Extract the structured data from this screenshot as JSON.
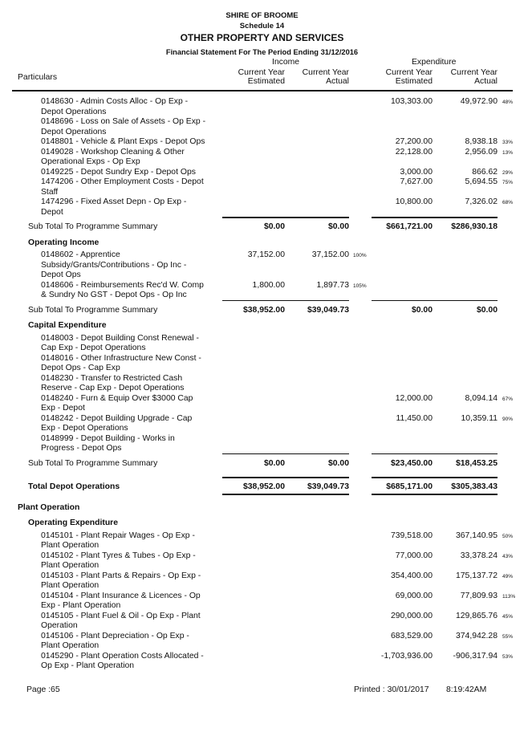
{
  "header": {
    "org": "SHIRE OF BROOME",
    "schedule": "Schedule 14",
    "title": "OTHER PROPERTY AND SERVICES",
    "period": "Financial Statement For The Period Ending 31/12/2016"
  },
  "columns": {
    "particulars": "Particulars",
    "income": "Income",
    "expenditure": "Expenditure",
    "cy": "Current Year",
    "estimated": "Estimated",
    "actual": "Actual"
  },
  "rows": [
    {
      "type": "item",
      "lines": [
        "0148630 - Admin Costs Alloc - Op Exp -",
        "Depot Operations"
      ],
      "exp_est": "103,303.00",
      "exp_act": "49,972.90",
      "pct": "48%"
    },
    {
      "type": "item",
      "lines": [
        "0148696 - Loss on Sale of Assets - Op Exp -",
        "Depot Operations"
      ]
    },
    {
      "type": "item",
      "lines": [
        "0148801 - Vehicle & Plant Exps - Depot Ops"
      ],
      "exp_est": "27,200.00",
      "exp_act": "8,938.18",
      "pct": "33%"
    },
    {
      "type": "item",
      "lines": [
        "0149028 - Workshop Cleaning & Other",
        "Operational Exps - Op Exp"
      ],
      "exp_est": "22,128.00",
      "exp_act": "2,956.09",
      "pct": "13%"
    },
    {
      "type": "item",
      "lines": [
        "0149225 - Depot Sundry Exp - Depot Ops"
      ],
      "exp_est": "3,000.00",
      "exp_act": "866.62",
      "pct": "29%"
    },
    {
      "type": "item",
      "lines": [
        "1474206 - Other Employment Costs - Depot",
        "Staff"
      ],
      "exp_est": "7,627.00",
      "exp_act": "5,694.55",
      "pct": "75%"
    },
    {
      "type": "item",
      "lines": [
        "1474296 - Fixed Asset Depn - Op Exp -",
        "Depot"
      ],
      "exp_est": "10,800.00",
      "exp_act": "7,326.02",
      "pct": "68%"
    },
    {
      "type": "subtotal",
      "label": "Sub Total To Programme Summary",
      "inc_est": "$0.00",
      "inc_act": "$0.00",
      "exp_est": "$661,721.00",
      "exp_act": "$286,930.18"
    },
    {
      "type": "group",
      "label": "Operating Income"
    },
    {
      "type": "item",
      "lines": [
        "0148602 - Apprentice",
        "Subsidy/Grants/Contributions - Op Inc -",
        "Depot Ops"
      ],
      "inc_est": "37,152.00",
      "inc_act": "37,152.00",
      "inc_pct": "100%"
    },
    {
      "type": "item",
      "lines": [
        "0148606 - Reimbursements Rec'd W. Comp",
        "& Sundry No GST - Depot Ops - Op Inc"
      ],
      "inc_est": "1,800.00",
      "inc_act": "1,897.73",
      "inc_pct": "105%"
    },
    {
      "type": "subtotal",
      "label": "Sub Total To Programme Summary",
      "inc_est": "$38,952.00",
      "inc_act": "$39,049.73",
      "exp_est": "$0.00",
      "exp_act": "$0.00"
    },
    {
      "type": "group",
      "label": "Capital Expenditure"
    },
    {
      "type": "item",
      "lines": [
        "0148003 - Depot Building Const Renewal -",
        "Cap Exp - Depot Operations"
      ]
    },
    {
      "type": "item",
      "lines": [
        "0148016 - Other Infrastructure New  Const  -",
        "Depot Ops - Cap Exp"
      ]
    },
    {
      "type": "item",
      "lines": [
        "0148230 - Transfer to Restricted Cash",
        "Reserve - Cap Exp - Depot Operations"
      ]
    },
    {
      "type": "item",
      "lines": [
        "0148240 - Furn & Equip Over $3000 Cap",
        "Exp - Depot"
      ],
      "exp_est": "12,000.00",
      "exp_act": "8,094.14",
      "pct": "67%"
    },
    {
      "type": "item",
      "lines": [
        "0148242 - Depot Building Upgrade - Cap",
        "Exp - Depot Operations"
      ],
      "exp_est": "11,450.00",
      "exp_act": "10,359.11",
      "pct": "90%"
    },
    {
      "type": "item",
      "lines": [
        "0148999 - Depot Building - Works in",
        "Progress - Depot Ops"
      ]
    },
    {
      "type": "subtotal",
      "label": "Sub Total To Programme Summary",
      "inc_est": "$0.00",
      "inc_act": "$0.00",
      "exp_est": "$23,450.00",
      "exp_act": "$18,453.25"
    },
    {
      "type": "total",
      "label": "Total Depot Operations",
      "inc_est": "$38,952.00",
      "inc_act": "$39,049.73",
      "exp_est": "$685,171.00",
      "exp_act": "$305,383.43"
    },
    {
      "type": "section",
      "label": "Plant Operation"
    },
    {
      "type": "group",
      "label": "Operating Expenditure"
    },
    {
      "type": "item",
      "lines": [
        "0145101 - Plant Repair Wages - Op Exp -",
        "Plant Operation"
      ],
      "exp_est": "739,518.00",
      "exp_act": "367,140.95",
      "pct": "50%"
    },
    {
      "type": "item",
      "lines": [
        "0145102 - Plant Tyres & Tubes - Op Exp -",
        "Plant Operation"
      ],
      "exp_est": "77,000.00",
      "exp_act": "33,378.24",
      "pct": "43%"
    },
    {
      "type": "item",
      "lines": [
        "0145103 - Plant Parts & Repairs - Op Exp -",
        "Plant Operation"
      ],
      "exp_est": "354,400.00",
      "exp_act": "175,137.72",
      "pct": "49%"
    },
    {
      "type": "item",
      "lines": [
        "0145104 - Plant Insurance & Licences - Op",
        "Exp - Plant Operation"
      ],
      "exp_est": "69,000.00",
      "exp_act": "77,809.93",
      "pct": "113%"
    },
    {
      "type": "item",
      "lines": [
        "0145105 - Plant Fuel & Oil - Op Exp - Plant",
        "Operation"
      ],
      "exp_est": "290,000.00",
      "exp_act": "129,865.76",
      "pct": "45%"
    },
    {
      "type": "item",
      "lines": [
        "0145106 - Plant Depreciation - Op Exp -",
        "Plant Operation"
      ],
      "exp_est": "683,529.00",
      "exp_act": "374,942.28",
      "pct": "55%"
    },
    {
      "type": "item",
      "lines": [
        "0145290 - Plant Operation Costs Allocated -",
        "Op Exp - Plant Operation"
      ],
      "exp_est": "-1,703,936.00",
      "exp_act": "-906,317.94",
      "pct": "53%"
    }
  ],
  "footer": {
    "page": "Page :65",
    "printed": "Printed :  30/01/2017",
    "time": "8:19:42AM"
  }
}
